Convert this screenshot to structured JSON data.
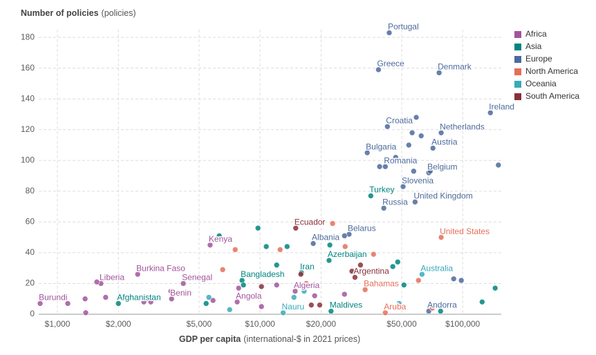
{
  "chart_data": {
    "type": "scatter",
    "y_label": "Number of policies",
    "y_unit": "(policies)",
    "x_label": "GDP per capita",
    "x_unit": "(international-$ in 2021 prices)",
    "x_scale": "log",
    "grid": true,
    "legend": "right",
    "xlim": [
      780,
      155000
    ],
    "xticks": [
      {
        "value": 1000,
        "label": "$1,000"
      },
      {
        "value": 2000,
        "label": "$2,000"
      },
      {
        "value": 5000,
        "label": "$5,000"
      },
      {
        "value": 10000,
        "label": "$10,000"
      },
      {
        "value": 20000,
        "label": "$20,000"
      },
      {
        "value": 50000,
        "label": "$50,000"
      },
      {
        "value": 100000,
        "label": "$100,000"
      }
    ],
    "ylim": [
      0,
      185
    ],
    "yticks": [
      0,
      20,
      40,
      60,
      80,
      100,
      120,
      140,
      160,
      180
    ],
    "series": [
      {
        "name": "Africa",
        "color": "#a2559c",
        "x": [
          822,
          1640,
          2490,
          5670,
          4180,
          3660,
          7710,
          14900,
          1125,
          1370,
          1380,
          1565,
          1730,
          2670,
          2890,
          3630,
          4490,
          5860,
          7840,
          10160,
          12080,
          18600,
          26100
        ],
        "values": [
          7,
          20,
          26,
          45,
          20,
          10,
          8,
          15,
          7,
          10,
          1,
          21,
          11,
          8,
          8,
          15,
          14,
          9,
          17,
          5,
          19,
          12,
          13
        ],
        "labels": [
          "Burundi",
          "Liberia",
          "Burkina Faso",
          "Kenya",
          "Senegal",
          "Benin",
          "Angola",
          "Algeria",
          null,
          null,
          null,
          null,
          null,
          null,
          null,
          null,
          null,
          null,
          null,
          null,
          null,
          null,
          null
        ]
      },
      {
        "name": "Asia",
        "color": "#00847e",
        "x": [
          2000,
          8150,
          16000,
          35200,
          21900,
          22400,
          6290,
          9770,
          10730,
          12080,
          13600,
          22100,
          47800,
          45200,
          51300,
          144600,
          124700,
          8280,
          5420,
          77800
        ],
        "values": [
          7,
          22,
          27,
          77,
          35,
          2,
          51,
          56,
          44,
          32,
          44,
          45,
          34,
          31,
          19,
          17,
          8,
          19,
          7,
          2
        ],
        "labels": [
          "Afghanistan",
          "Bangladesh",
          "Iran",
          "Turkey",
          "Azerbaijan",
          "Maldives",
          null,
          null,
          null,
          null,
          null,
          null,
          null,
          null,
          null,
          null,
          null,
          null,
          null,
          null
        ]
      },
      {
        "name": "Europe",
        "color": "#4c6a9c",
        "x": [
          43400,
          38400,
          76500,
          137000,
          42500,
          78300,
          71300,
          33800,
          41500,
          68000,
          50800,
          58200,
          40800,
          27500,
          18300,
          68000,
          150000,
          59000,
          56300,
          62400,
          54200,
          38300,
          46700,
          38900,
          57300,
          69100,
          26100,
          90300,
          98400
        ],
        "values": [
          183,
          159,
          157,
          131,
          122,
          118,
          108,
          105,
          96,
          92,
          83,
          73,
          69,
          52,
          46,
          2,
          97,
          128,
          118,
          116,
          110,
          109,
          102,
          96,
          93,
          93,
          51,
          23,
          22
        ],
        "labels": [
          "Portugal",
          "Greece",
          "Denmark",
          "Ireland",
          "Croatia",
          "Netherlands",
          "Austria",
          "Bulgaria",
          "Romania",
          "Belgium",
          "Slovenia",
          "United Kingdom",
          "Russia",
          "Belarus",
          "Albania",
          "Andorra",
          null,
          null,
          null,
          null,
          null,
          null,
          null,
          null,
          null,
          null,
          null,
          null,
          null
        ]
      },
      {
        "name": "North America",
        "color": "#e56e5a",
        "x": [
          78300,
          33000,
          41500,
          7540,
          6540,
          12560,
          22800,
          26300,
          36300,
          60500,
          16900,
          70800
        ],
        "values": [
          50,
          16,
          1,
          42,
          29,
          42,
          59,
          44,
          39,
          22,
          20,
          4
        ],
        "labels": [
          "United States",
          "Bahamas",
          "Aruba",
          null,
          null,
          null,
          null,
          null,
          null,
          null,
          null,
          null
        ]
      },
      {
        "name": "Oceania",
        "color": "#38aaba",
        "x": [
          63000,
          13000,
          5590,
          7080,
          14700,
          16500,
          48500
        ],
        "values": [
          26,
          1,
          11,
          3,
          11,
          15,
          7
        ],
        "labels": [
          "Australia",
          "Nauru",
          null,
          null,
          null,
          null,
          null
        ]
      },
      {
        "name": "South America",
        "color": "#883039",
        "x": [
          15000,
          29400,
          10160,
          15900,
          19700,
          31300,
          28400,
          17900
        ],
        "values": [
          56,
          24,
          18,
          26,
          6,
          32,
          28,
          6
        ],
        "labels": [
          "Ecuador",
          "Argentina",
          null,
          null,
          null,
          null,
          null,
          null
        ]
      }
    ]
  }
}
